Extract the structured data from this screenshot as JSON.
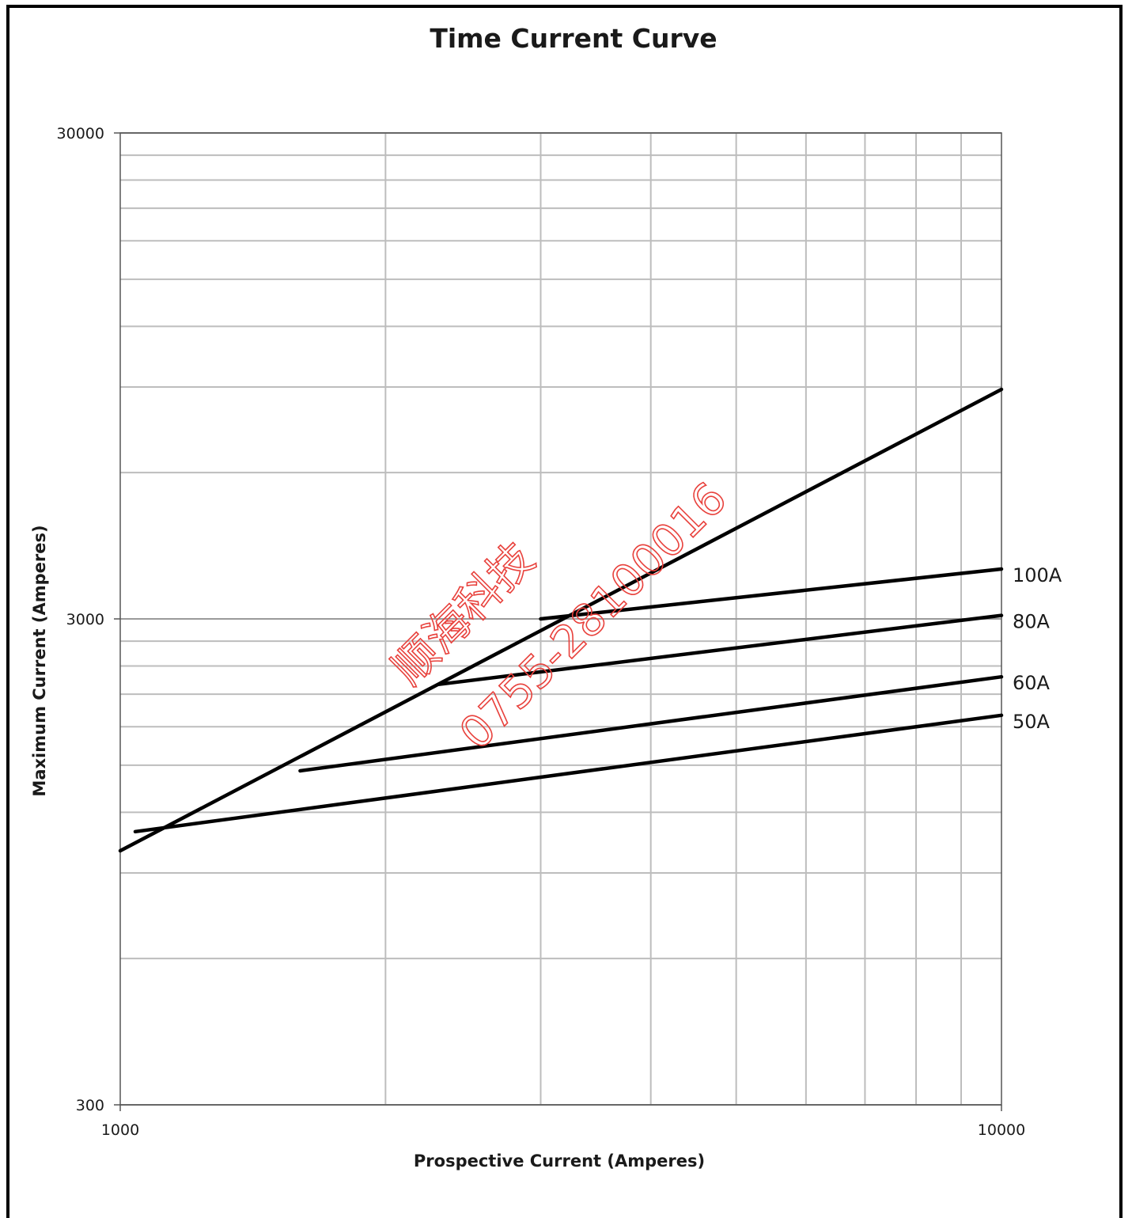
{
  "chart_data": {
    "type": "line",
    "title": "Time Current Curve",
    "xlabel": "Prospective Current  (Amperes)",
    "ylabel": "Maximum Current  (Amperes)",
    "x_scale": "log",
    "y_scale": "log",
    "xlim": [
      1000,
      10000
    ],
    "ylim": [
      300,
      30000
    ],
    "grid": true,
    "x_ticks": [
      1000,
      10000
    ],
    "x_tick_labels": [
      "1000",
      "10000"
    ],
    "y_ticks": [
      300,
      3000,
      30000
    ],
    "y_tick_labels": [
      "300",
      "3000",
      "30000"
    ],
    "series": [
      {
        "name": "100A",
        "x": [
          3000,
          10000
        ],
        "y": [
          3000,
          3800
        ]
      },
      {
        "name": "80A",
        "x": [
          2300,
          10000
        ],
        "y": [
          2200,
          3050
        ]
      },
      {
        "name": "60A",
        "x": [
          1600,
          10000
        ],
        "y": [
          1460,
          2280
        ]
      },
      {
        "name": "50A",
        "x": [
          1040,
          10000
        ],
        "y": [
          1095,
          1900
        ]
      },
      {
        "name": "",
        "x": [
          1000,
          10000
        ],
        "y": [
          1000,
          8900
        ]
      }
    ],
    "line_color": "#000000"
  },
  "watermark": {
    "line1": "顺海科技",
    "line2": "0755-28100016",
    "color": "#e8413c"
  }
}
